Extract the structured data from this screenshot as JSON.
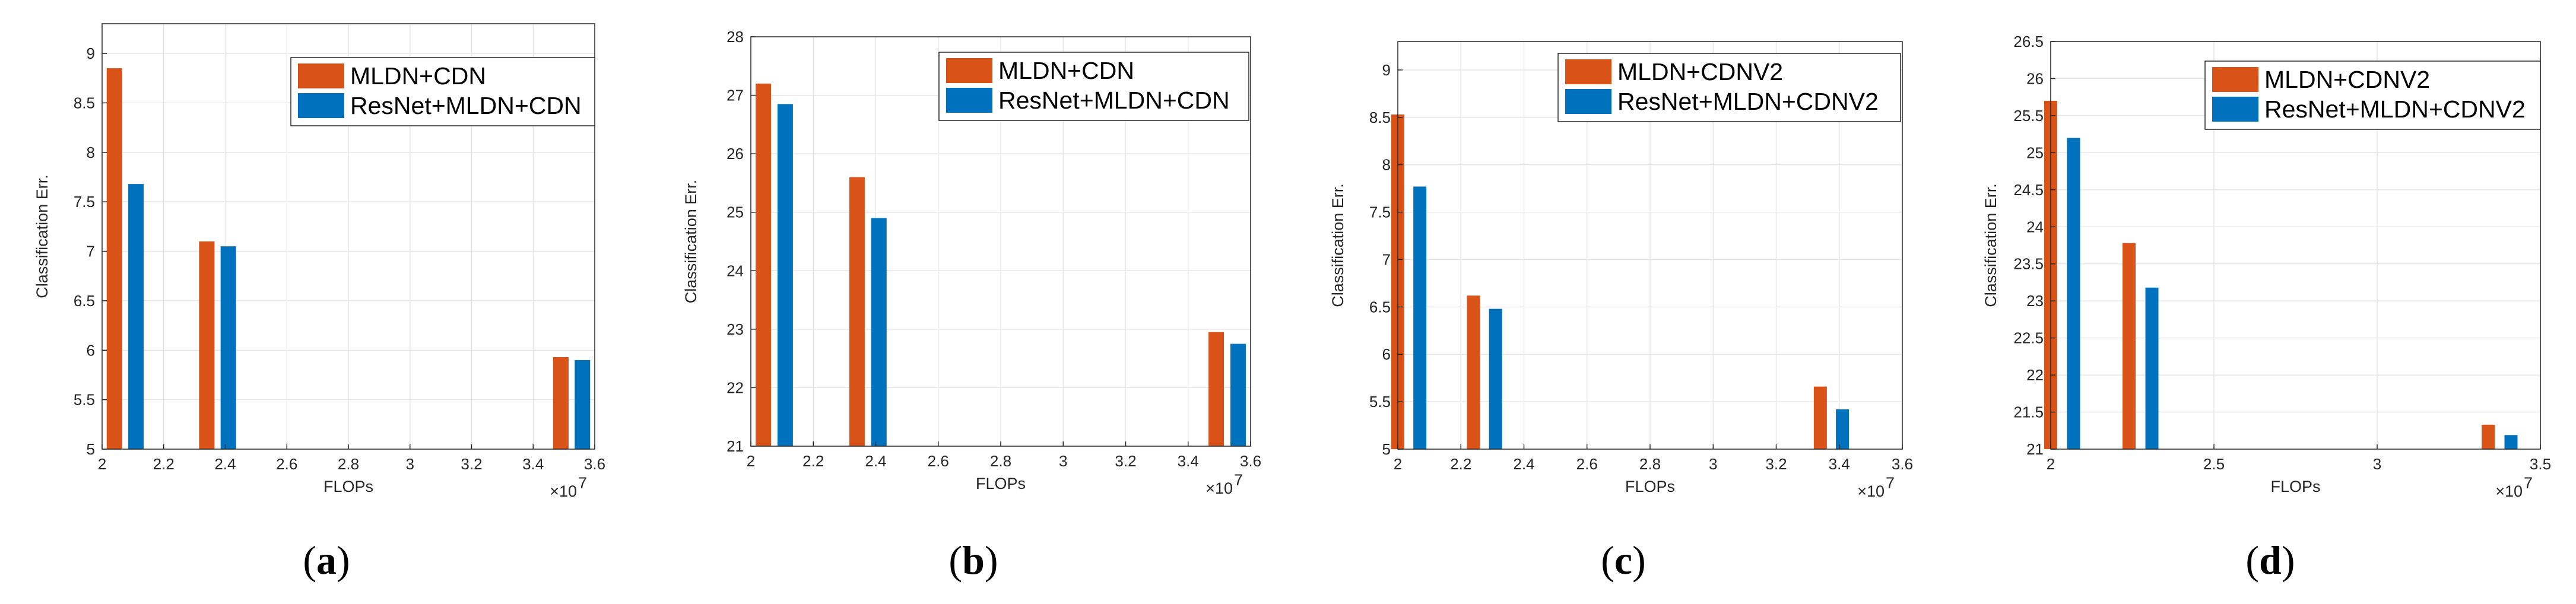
{
  "chart_data": [
    {
      "type": "bar",
      "xlabel": "FLOPs",
      "ylabel": "Classification Err.",
      "x_exponent": "×10",
      "x_exponent_power": "7",
      "xlim": [
        2.0,
        3.6
      ],
      "ylim": [
        5,
        9.3
      ],
      "xticks": [
        2.0,
        2.2,
        2.4,
        2.6,
        2.8,
        3.0,
        3.2,
        3.4,
        3.6
      ],
      "xtick_labels": [
        "2",
        "2.2",
        "2.4",
        "2.6",
        "2.8",
        "3",
        "3.2",
        "3.4",
        "3.6"
      ],
      "yticks": [
        5,
        5.5,
        6,
        6.5,
        7,
        7.5,
        8,
        8.5,
        9
      ],
      "ytick_labels": [
        "5",
        "5.5",
        "6",
        "6.5",
        "7",
        "7.5",
        "8",
        "8.5",
        "9"
      ],
      "grid": true,
      "legend_position": "top-right",
      "series": [
        {
          "name": "MLDN+CDN",
          "color": "#D95319",
          "x": [
            2.04,
            2.34,
            3.49
          ],
          "values": [
            8.85,
            7.1,
            5.93
          ]
        },
        {
          "name": "ResNet+MLDN+CDN",
          "color": "#0072BD",
          "x": [
            2.11,
            2.41,
            3.56
          ],
          "values": [
            7.68,
            7.05,
            5.9
          ]
        }
      ],
      "caption": "a"
    },
    {
      "type": "bar",
      "xlabel": "FLOPs",
      "ylabel": "Classification Err.",
      "x_exponent": "×10",
      "x_exponent_power": "7",
      "xlim": [
        2.0,
        3.6
      ],
      "ylim": [
        21,
        28
      ],
      "xticks": [
        2.0,
        2.2,
        2.4,
        2.6,
        2.8,
        3.0,
        3.2,
        3.4,
        3.6
      ],
      "xtick_labels": [
        "2",
        "2.2",
        "2.4",
        "2.6",
        "2.8",
        "3",
        "3.2",
        "3.4",
        "3.6"
      ],
      "yticks": [
        21,
        22,
        23,
        24,
        25,
        26,
        27,
        28
      ],
      "ytick_labels": [
        "21",
        "22",
        "23",
        "24",
        "25",
        "26",
        "27",
        "28"
      ],
      "grid": true,
      "legend_position": "top-right",
      "series": [
        {
          "name": "MLDN+CDN",
          "color": "#D95319",
          "x": [
            2.04,
            2.34,
            3.49
          ],
          "values": [
            27.2,
            25.6,
            22.95
          ]
        },
        {
          "name": "ResNet+MLDN+CDN",
          "color": "#0072BD",
          "x": [
            2.11,
            2.41,
            3.56
          ],
          "values": [
            26.85,
            24.9,
            22.75
          ]
        }
      ],
      "caption": "b"
    },
    {
      "type": "bar",
      "xlabel": "FLOPs",
      "ylabel": "Classification Err.",
      "x_exponent": "×10",
      "x_exponent_power": "7",
      "xlim": [
        2.0,
        3.6
      ],
      "ylim": [
        5,
        9.3
      ],
      "xticks": [
        2.0,
        2.2,
        2.4,
        2.6,
        2.8,
        3.0,
        3.2,
        3.4,
        3.6
      ],
      "xtick_labels": [
        "2",
        "2.2",
        "2.4",
        "2.6",
        "2.8",
        "3",
        "3.2",
        "3.4",
        "3.6"
      ],
      "yticks": [
        5,
        5.5,
        6,
        6.5,
        7,
        7.5,
        8,
        8.5,
        9
      ],
      "ytick_labels": [
        "5",
        "5.5",
        "6",
        "6.5",
        "7",
        "7.5",
        "8",
        "8.5",
        "9"
      ],
      "grid": true,
      "legend_position": "top-right",
      "series": [
        {
          "name": "MLDN+CDNV2",
          "color": "#D95319",
          "x": [
            2.0,
            2.24,
            3.34
          ],
          "values": [
            8.53,
            6.62,
            5.66
          ]
        },
        {
          "name": "ResNet+MLDN+CDNV2",
          "color": "#0072BD",
          "x": [
            2.07,
            2.31,
            3.41
          ],
          "values": [
            7.77,
            6.48,
            5.42
          ]
        }
      ],
      "caption": "c"
    },
    {
      "type": "bar",
      "xlabel": "FLOPs",
      "ylabel": "Classification Err.",
      "x_exponent": "×10",
      "x_exponent_power": "7",
      "xlim": [
        2.0,
        3.5
      ],
      "ylim": [
        21,
        26.5
      ],
      "xticks": [
        2.0,
        2.5,
        3.0,
        3.5
      ],
      "xtick_labels": [
        "2",
        "2.5",
        "3",
        "3.5"
      ],
      "yticks": [
        21,
        21.5,
        22,
        22.5,
        23,
        23.5,
        24,
        24.5,
        25,
        25.5,
        26,
        26.5
      ],
      "ytick_labels": [
        "21",
        "21.5",
        "22",
        "22.5",
        "23",
        "23.5",
        "24",
        "24.5",
        "25",
        "25.5",
        "26",
        "26.5"
      ],
      "grid": true,
      "legend_position": "top-right",
      "series": [
        {
          "name": "MLDN+CDNV2",
          "color": "#D95319",
          "x": [
            2.0,
            2.24,
            3.34
          ],
          "values": [
            25.7,
            23.78,
            21.33
          ]
        },
        {
          "name": "ResNet+MLDN+CDNV2",
          "color": "#0072BD",
          "x": [
            2.07,
            2.31,
            3.41
          ],
          "values": [
            25.2,
            23.18,
            21.19
          ]
        }
      ],
      "caption": "d"
    }
  ]
}
